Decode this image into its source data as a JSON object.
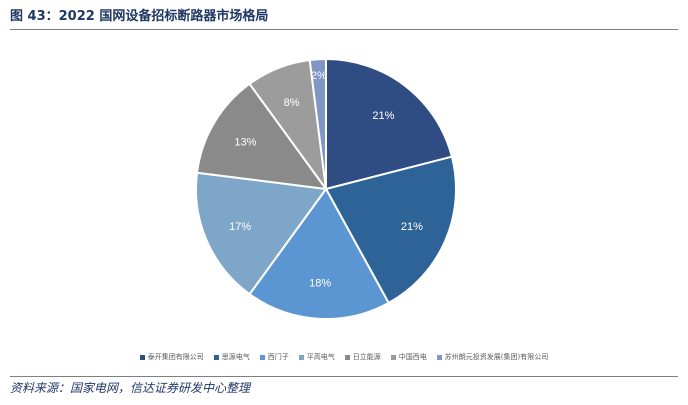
{
  "title": "图 43：2022 国网设备招标断路器市场格局",
  "source": "资料来源：国家电网，信达证券研发中心整理",
  "chart_data": {
    "type": "pie",
    "series": [
      {
        "name": "泰开集团有限公司",
        "value": 21,
        "label": "21%",
        "color": "#2f4d82"
      },
      {
        "name": "思源电气",
        "value": 21,
        "label": "21%",
        "color": "#2e6398"
      },
      {
        "name": "西门子",
        "value": 18,
        "label": "18%",
        "color": "#5b96d2"
      },
      {
        "name": "平高电气",
        "value": 17,
        "label": "17%",
        "color": "#7ea6c9"
      },
      {
        "name": "日立能源",
        "value": 13,
        "label": "13%",
        "color": "#8a8a8a"
      },
      {
        "name": "中国西电",
        "value": 8,
        "label": "8%",
        "color": "#9c9c9c"
      },
      {
        "name": "苏州朗元投资发展(集团)有限公司",
        "value": 2,
        "label": "2%",
        "color": "#8096c4"
      }
    ],
    "legend_position": "bottom"
  }
}
